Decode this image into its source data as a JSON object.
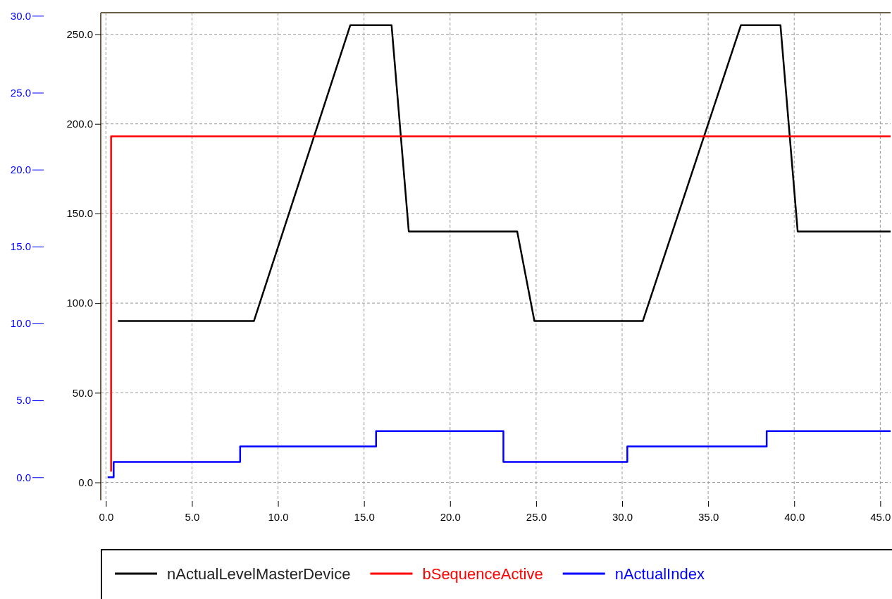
{
  "chart_data": {
    "type": "line",
    "xlim": [
      -0.3,
      45.6
    ],
    "xticks": [
      {
        "value": 0,
        "label": "0.0"
      },
      {
        "value": 5,
        "label": "5.0"
      },
      {
        "value": 10,
        "label": "10.0"
      },
      {
        "value": 15,
        "label": "15.0"
      },
      {
        "value": 20,
        "label": "20.0"
      },
      {
        "value": 25,
        "label": "25.0"
      },
      {
        "value": 30,
        "label": "30.0"
      },
      {
        "value": 35,
        "label": "35.0"
      },
      {
        "value": 40,
        "label": "40.0"
      },
      {
        "value": 45,
        "label": "45.0"
      }
    ],
    "ylim": [
      -10,
      262
    ],
    "yticks": [
      {
        "value": 0,
        "label": "0.0"
      },
      {
        "value": 50,
        "label": "50.0"
      },
      {
        "value": 100,
        "label": "100.0"
      },
      {
        "value": 150,
        "label": "150.0"
      },
      {
        "value": 200,
        "label": "200.0"
      },
      {
        "value": 250,
        "label": "250.0"
      }
    ],
    "y2lim": [
      -1.5,
      30.2
    ],
    "y2ticks": [
      {
        "value": 0,
        "label": "0.0"
      },
      {
        "value": 5,
        "label": "5.0"
      },
      {
        "value": 10,
        "label": "10.0"
      },
      {
        "value": 15,
        "label": "15.0"
      },
      {
        "value": 20,
        "label": "20.0"
      },
      {
        "value": 25,
        "label": "25.0"
      },
      {
        "value": 30,
        "label": "30.0"
      }
    ],
    "grid": true,
    "legend": "bottom",
    "series": [
      {
        "name": "nActualLevelMasterDevice",
        "color": "#000000",
        "x": [
          0.7,
          8.6,
          14.2,
          16.6,
          17.6,
          23.9,
          24.9,
          31.2,
          36.9,
          39.2,
          40.2,
          45.6
        ],
        "values": [
          90,
          90,
          255,
          255,
          140,
          140,
          90,
          90,
          255,
          255,
          140,
          140
        ]
      },
      {
        "name": "bSequenceActive",
        "color": "#ff0000",
        "x": [
          0.3,
          0.3,
          45.6
        ],
        "values": [
          6,
          193,
          193
        ]
      },
      {
        "name": "nActualIndex",
        "color": "#0000ff",
        "type": "step",
        "axis": "y2",
        "x": [
          0.1,
          0.45,
          7.8,
          15.7,
          23.1,
          30.3,
          38.4,
          45.6
        ],
        "values": [
          0,
          1,
          2,
          3,
          1,
          2,
          3,
          3
        ]
      }
    ]
  }
}
